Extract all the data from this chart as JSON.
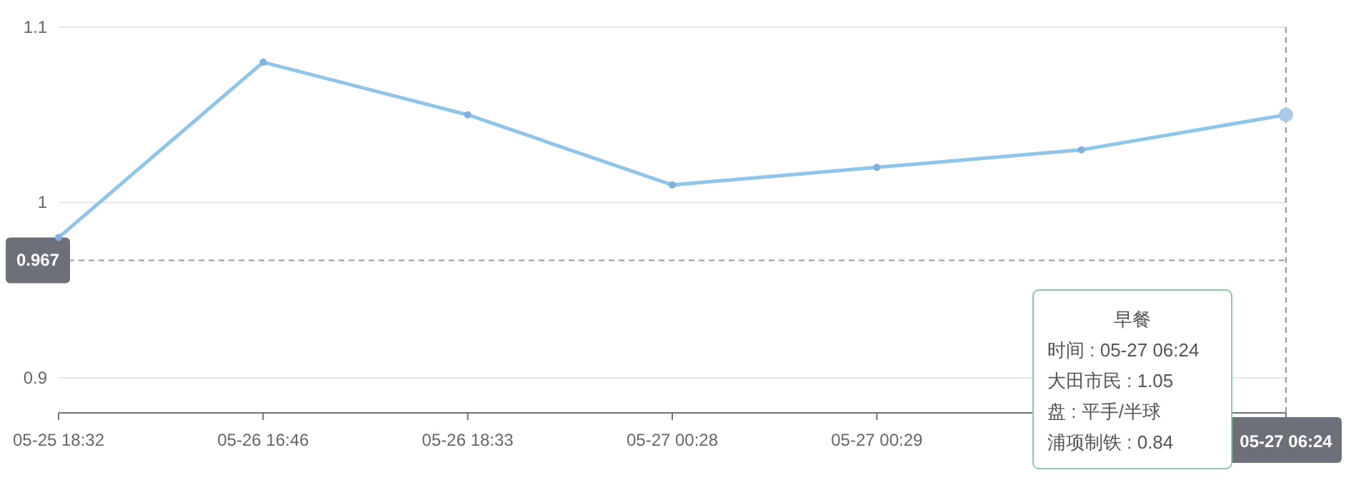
{
  "chart_data": {
    "type": "line",
    "categories": [
      "05-25 18:32",
      "05-26 16:46",
      "05-26 18:33",
      "05-27 00:28",
      "05-27 00:29",
      null,
      "05-27 06:24"
    ],
    "series": [
      {
        "color": "#8ec5e9",
        "values": [
          0.98,
          1.08,
          1.05,
          1.01,
          1.02,
          1.03,
          1.05
        ]
      }
    ],
    "ylim": [
      0.88,
      1.1
    ],
    "yticks": [
      0.9,
      1,
      1.1
    ],
    "grid": "y",
    "marker": "circle",
    "line_style": "solid",
    "ref_lines": [
      {
        "axis": "y",
        "value": 0.967,
        "label": "0.967",
        "line_style": "dashed"
      },
      {
        "axis": "x",
        "value": "05-27 06:24",
        "line_style": "dashed"
      }
    ],
    "annotations": [
      "早餐",
      "时间 : 05-27 06:24",
      "大田市民 : 1.05",
      "盘 : 平手/半球",
      "浦项制铁 : 0.84"
    ]
  }
}
